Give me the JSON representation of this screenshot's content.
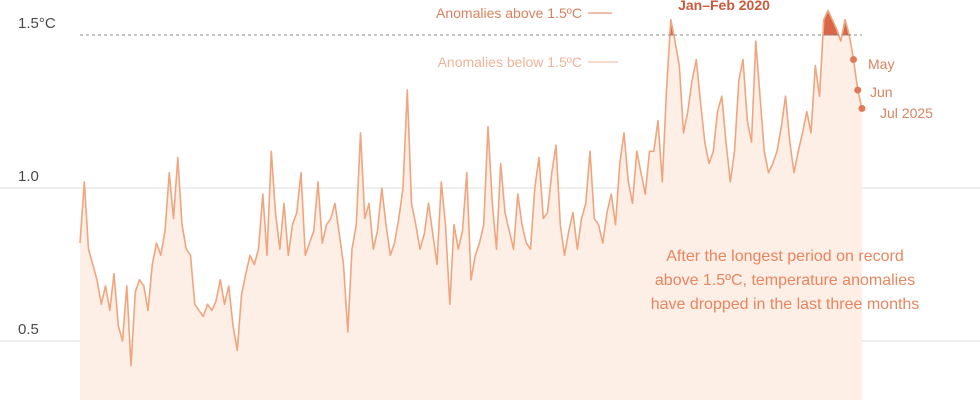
{
  "chart_data": {
    "type": "area",
    "ylabel": "",
    "y_ticks": [
      "1.5°C",
      "1.0",
      "0.5"
    ],
    "y_tick_values": [
      1.5,
      1.0,
      0.5
    ],
    "ylim": [
      0.35,
      1.62
    ],
    "threshold": 1.5,
    "x_start": "1979-01",
    "x_end": "2025-07",
    "values": [
      0.82,
      1.02,
      0.8,
      0.75,
      0.7,
      0.62,
      0.68,
      0.6,
      0.72,
      0.55,
      0.5,
      0.68,
      0.42,
      0.66,
      0.7,
      0.68,
      0.6,
      0.75,
      0.82,
      0.78,
      0.86,
      1.05,
      0.9,
      1.1,
      0.88,
      0.8,
      0.78,
      0.62,
      0.6,
      0.58,
      0.62,
      0.6,
      0.63,
      0.7,
      0.62,
      0.68,
      0.55,
      0.47,
      0.65,
      0.72,
      0.78,
      0.75,
      0.8,
      0.98,
      0.78,
      1.12,
      0.92,
      0.8,
      0.95,
      0.78,
      0.88,
      0.92,
      1.05,
      0.78,
      0.82,
      0.86,
      1.02,
      0.82,
      0.88,
      0.9,
      0.95,
      0.85,
      0.75,
      0.53,
      0.8,
      0.88,
      1.18,
      0.9,
      0.95,
      0.8,
      0.86,
      1.0,
      0.88,
      0.78,
      0.82,
      0.9,
      1.0,
      1.32,
      0.95,
      0.88,
      0.8,
      0.85,
      0.95,
      0.85,
      0.75,
      1.02,
      0.88,
      0.62,
      0.88,
      0.8,
      0.86,
      1.05,
      0.7,
      0.78,
      0.82,
      0.88,
      1.2,
      0.95,
      0.8,
      1.08,
      0.92,
      0.86,
      0.8,
      0.98,
      0.88,
      0.82,
      0.8,
      1.0,
      1.1,
      0.9,
      0.92,
      1.05,
      1.14,
      0.88,
      0.78,
      0.86,
      0.92,
      0.8,
      0.9,
      0.95,
      1.12,
      0.9,
      0.88,
      0.82,
      0.92,
      0.98,
      0.88,
      1.08,
      1.18,
      1.02,
      0.95,
      1.12,
      1.05,
      0.98,
      1.12,
      1.12,
      1.22,
      1.02,
      1.32,
      1.55,
      1.48,
      1.4,
      1.18,
      1.25,
      1.35,
      1.42,
      1.28,
      1.15,
      1.08,
      1.12,
      1.25,
      1.3,
      1.15,
      1.02,
      1.12,
      1.35,
      1.42,
      1.22,
      1.15,
      1.48,
      1.3,
      1.12,
      1.05,
      1.08,
      1.12,
      1.2,
      1.3,
      1.15,
      1.05,
      1.12,
      1.18,
      1.25,
      1.18,
      1.4,
      1.3,
      1.55,
      1.58,
      1.55,
      1.52,
      1.48,
      1.55,
      1.5,
      1.42,
      1.32,
      1.26
    ]
  },
  "annotations": {
    "above_label": "Anomalies above 1.5ºC",
    "below_label": "Anomalies below 1.5ºC",
    "peak_label": "Jan–Feb 2020",
    "end_labels": [
      "May",
      "Jun",
      "Jul 2025"
    ],
    "note_lines": [
      "After the longest period on record",
      "above 1.5ºC, temperature anomalies",
      "have dropped in the last three months"
    ]
  },
  "colors": {
    "line": "#f0a57e",
    "fill": "#fdeee6",
    "above": "#d8674a",
    "accent": "#e07a56",
    "grid": "#dddddd",
    "threshold": "#888888"
  }
}
